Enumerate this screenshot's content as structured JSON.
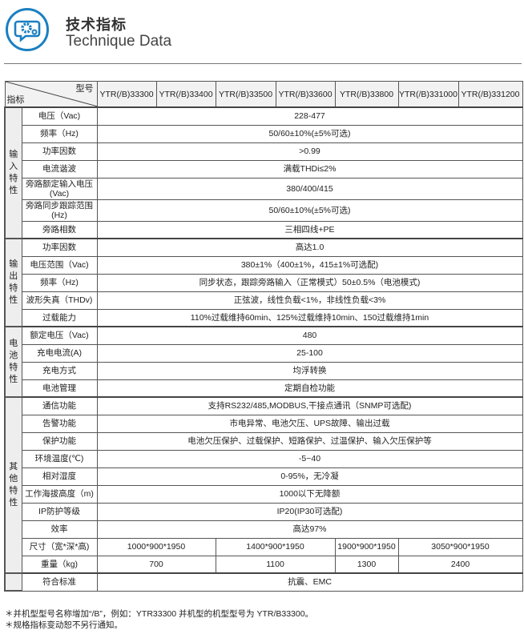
{
  "header": {
    "title_cn": "技术指标",
    "title_en": "Technique Data",
    "logo_icon": "gear-panel-icon",
    "accent": "#1a7fc1"
  },
  "table": {
    "corner_top": "型号",
    "corner_bottom": "指标",
    "models": [
      "YTR(/B)33300",
      "YTR(/B)33400",
      "YTR(/B)33500",
      "YTR(/B)33600",
      "YTR(/B)33800",
      "YTR(/B)331000",
      "YTR(/B)331200"
    ],
    "groups": [
      {
        "name": "输入特性",
        "rows": [
          {
            "label": "电压（Vac)",
            "values": [
              {
                "text": "228-477",
                "span": 7
              }
            ]
          },
          {
            "label": "频率（Hz)",
            "values": [
              {
                "text": "50/60±10%(±5%可选)",
                "span": 7
              }
            ]
          },
          {
            "label": "功率因数",
            "values": [
              {
                "text": ">0.99",
                "span": 7
              }
            ]
          },
          {
            "label": "电流谐波",
            "values": [
              {
                "text": "满载THDi≤2%",
                "span": 7
              }
            ]
          },
          {
            "label": "旁路额定输入电压(Vac)",
            "values": [
              {
                "text": "380/400/415",
                "span": 7
              }
            ]
          },
          {
            "label": "旁路同步跟踪范围(Hz)",
            "values": [
              {
                "text": "50/60±10%(±5%可选)",
                "span": 7
              }
            ]
          },
          {
            "label": "旁路相数",
            "values": [
              {
                "text": "三相四线+PE",
                "span": 7
              }
            ]
          }
        ]
      },
      {
        "name": "输出特性",
        "rows": [
          {
            "label": "功率因数",
            "values": [
              {
                "text": "高达1.0",
                "span": 7
              }
            ]
          },
          {
            "label": "电压范围（Vac)",
            "values": [
              {
                "text": "380±1%（400±1%，415±1%可选配)",
                "span": 7
              }
            ]
          },
          {
            "label": "频率（Hz)",
            "values": [
              {
                "text": "同步状态，跟踪旁路输入（正常模式）50±0.5%（电池模式)",
                "span": 7
              }
            ]
          },
          {
            "label": "波形失真（THDv)",
            "values": [
              {
                "text": "正弦波，线性负载<1%，非线性负载<3%",
                "span": 7
              }
            ]
          },
          {
            "label": "过载能力",
            "values": [
              {
                "text": "110%过载维持60min、125%过载维持10min、150过载维持1min",
                "span": 7
              }
            ]
          }
        ]
      },
      {
        "name": "电池特性",
        "rows": [
          {
            "label": "额定电压（Vac)",
            "values": [
              {
                "text": "480",
                "span": 7
              }
            ]
          },
          {
            "label": "充电电流(A)",
            "values": [
              {
                "text": "25-100",
                "span": 7
              }
            ]
          },
          {
            "label": "充电方式",
            "values": [
              {
                "text": "均浮转换",
                "span": 7
              }
            ]
          },
          {
            "label": "电池管理",
            "values": [
              {
                "text": "定期自检功能",
                "span": 7
              }
            ]
          }
        ]
      },
      {
        "name": "其他特性",
        "rows": [
          {
            "label": "通信功能",
            "values": [
              {
                "text": "支持RS232/485,MODBUS,干接点通讯（SNMP可选配)",
                "span": 7
              }
            ]
          },
          {
            "label": "告警功能",
            "values": [
              {
                "text": "市电异常、电池欠压、UPS故障、输出过载",
                "span": 7
              }
            ]
          },
          {
            "label": "保护功能",
            "values": [
              {
                "text": "电池欠压保护、过载保护、短路保护、过温保护、输入欠压保护等",
                "span": 7
              }
            ]
          },
          {
            "label": "环境温度(℃)",
            "values": [
              {
                "text": "-5~40",
                "span": 7
              }
            ]
          },
          {
            "label": "相对湿度",
            "values": [
              {
                "text": "0-95%，无冷凝",
                "span": 7
              }
            ]
          },
          {
            "label": "工作海拔高度（m)",
            "values": [
              {
                "text": "1000以下无降额",
                "span": 7
              }
            ]
          },
          {
            "label": "IP防护等级",
            "values": [
              {
                "text": "IP20(IP30可选配)",
                "span": 7
              }
            ]
          },
          {
            "label": "效率",
            "values": [
              {
                "text": "高达97%",
                "span": 7
              }
            ]
          },
          {
            "label": "尺寸（宽*深*高)",
            "values": [
              {
                "text": "1000*900*1950",
                "span": 2
              },
              {
                "text": "1400*900*1950",
                "span": 2
              },
              {
                "text": "1900*900*1950",
                "span": 1
              },
              {
                "text": "3050*900*1950",
                "span": 2
              }
            ]
          },
          {
            "label": "重量（kg)",
            "values": [
              {
                "text": "700",
                "span": 2
              },
              {
                "text": "1100",
                "span": 2
              },
              {
                "text": "1300",
                "span": 1
              },
              {
                "text": "2400",
                "span": 2
              }
            ]
          }
        ]
      },
      {
        "name": "",
        "rows": [
          {
            "label": "符合标准",
            "values": [
              {
                "text": "抗震、EMC",
                "span": 7
              }
            ]
          }
        ]
      }
    ]
  },
  "notes": [
    "＊并机型型号名称增加“/B”，例如：YTR33300 并机型的机型型号为 YTR/B33300。",
    "＊规格指标变动恕不另行通知。"
  ]
}
